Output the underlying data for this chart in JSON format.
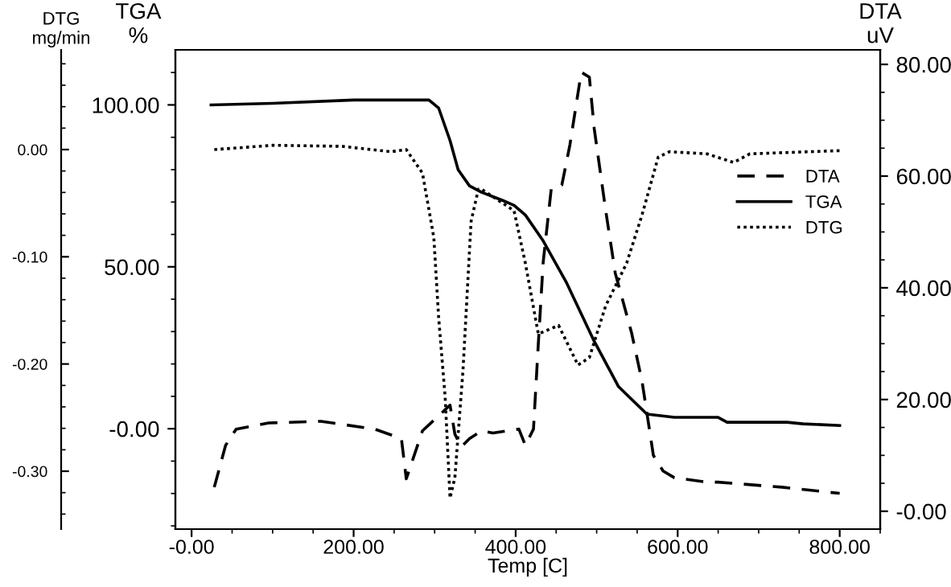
{
  "chart_data": {
    "type": "line",
    "xlabel": "Temp [C]",
    "ylabel": "TGA\n%",
    "y2label": "DTA\nuV",
    "y3label": "DTG\nmg/min",
    "xlim": [
      -20,
      850
    ],
    "xticks": [
      {
        "value": 0,
        "label": "-0.00"
      },
      {
        "value": 200,
        "label": "200.00"
      },
      {
        "value": 400,
        "label": "400.00"
      },
      {
        "value": 600,
        "label": "600.00"
      },
      {
        "value": 800,
        "label": "800.00"
      }
    ],
    "ylim": [
      -31,
      117
    ],
    "yticks": [
      {
        "value": 0,
        "label": "-0.00"
      },
      {
        "value": 50,
        "label": "50.00"
      },
      {
        "value": 100,
        "label": "100.00"
      }
    ],
    "y2lim": [
      -3.2,
      82.6
    ],
    "y2ticks": [
      {
        "value": 0,
        "label": "-0.00"
      },
      {
        "value": 20,
        "label": "20.00"
      },
      {
        "value": 40,
        "label": "40.00"
      },
      {
        "value": 60,
        "label": "60.00"
      },
      {
        "value": 80,
        "label": "80.00"
      }
    ],
    "y3lim": [
      -0.354,
      0.093
    ],
    "y3ticks": [
      {
        "value": 0,
        "label": "0.00"
      },
      {
        "value": -0.1,
        "label": "-0.10"
      },
      {
        "value": -0.2,
        "label": "-0.20"
      },
      {
        "value": -0.3,
        "label": "-0.30"
      }
    ],
    "grid": false,
    "legend": "right",
    "series": [
      {
        "name": "DTA",
        "color": "#000000",
        "axis": "y2",
        "line_style": "dashed",
        "x": [
          28,
          42,
          55,
          95,
          160,
          226,
          259,
          265,
          285,
          319,
          325,
          333,
          343,
          358,
          372,
          404,
          412,
          422,
          428,
          434,
          444,
          457,
          467,
          481,
          491,
          497,
          511,
          523,
          543,
          556,
          570,
          582,
          596,
          636,
          650,
          729,
          800
        ],
        "values": [
          4.3,
          11.8,
          14.7,
          15.8,
          16.1,
          14.7,
          13,
          5.8,
          14.4,
          19,
          13.8,
          11.5,
          13,
          14.4,
          14,
          14.7,
          11.8,
          14.7,
          30,
          44.6,
          57.8,
          58.4,
          65.6,
          78.6,
          77.7,
          68.5,
          54,
          42.6,
          32,
          23.3,
          10,
          7.2,
          6,
          5.2,
          5.2,
          4.3,
          3.2
        ]
      },
      {
        "name": "TGA",
        "color": "#000000",
        "axis": "y",
        "line_style": "solid",
        "x": [
          24,
          100,
          200,
          250,
          293,
          305,
          319,
          329,
          343,
          358,
          384,
          398,
          412,
          434,
          463,
          497,
          527,
          562,
          596,
          650,
          661,
          735,
          755,
          800
        ],
        "values": [
          100,
          100.5,
          101.5,
          101.5,
          101.5,
          99,
          89,
          80,
          75,
          73,
          70.5,
          69,
          66,
          58,
          45,
          27,
          13,
          4.5,
          3.5,
          3.5,
          2,
          2,
          1.5,
          1
        ]
      },
      {
        "name": "DTG",
        "color": "#000000",
        "axis": "y3",
        "line_style": "dotted",
        "x": [
          28,
          101,
          186,
          246,
          265,
          285,
          299,
          305,
          313,
          319,
          325,
          335,
          345,
          354,
          358,
          398,
          412,
          428,
          453,
          477,
          491,
          511,
          537,
          556,
          576,
          590,
          636,
          669,
          689,
          800
        ],
        "values": [
          0.0,
          0.004,
          0.003,
          -0.002,
          0.0,
          -0.022,
          -0.082,
          -0.157,
          -0.231,
          -0.325,
          -0.306,
          -0.206,
          -0.067,
          -0.037,
          -0.037,
          -0.057,
          -0.106,
          -0.172,
          -0.164,
          -0.201,
          -0.194,
          -0.146,
          -0.106,
          -0.061,
          -0.007,
          -0.002,
          -0.004,
          -0.012,
          -0.004,
          -0.001
        ]
      }
    ]
  }
}
